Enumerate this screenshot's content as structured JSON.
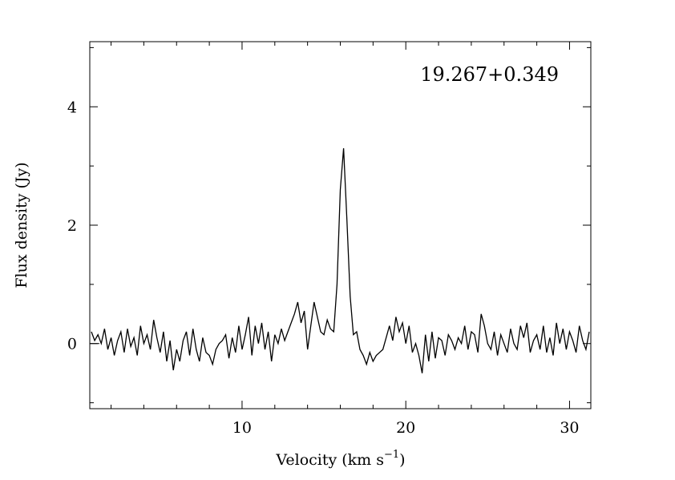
{
  "chart_data": {
    "type": "line",
    "title": "",
    "annotation": "19.267+0.349",
    "xlabel": "Velocity (km s",
    "xlabel_sup": "−1",
    "xlabel_end": ")",
    "ylabel": "Flux density (Jy)",
    "xlim": [
      0.7,
      31.3
    ],
    "ylim": [
      -1.1,
      5.1
    ],
    "x_ticks": [
      10,
      20,
      30
    ],
    "x_tick_labels": [
      "10",
      "20",
      "30"
    ],
    "x_minor_step": 2,
    "y_ticks": [
      0,
      2,
      4
    ],
    "y_tick_labels": [
      "0",
      "2",
      "4"
    ],
    "y_minor_step": 1,
    "grid": false,
    "line_color": "#000000",
    "series": [
      {
        "x_start": 0.8,
        "x_step": 0.2,
        "values": [
          0.2,
          0.05,
          0.15,
          0.0,
          0.25,
          -0.1,
          0.1,
          -0.2,
          0.05,
          0.2,
          -0.15,
          0.25,
          -0.05,
          0.1,
          -0.2,
          0.3,
          0.0,
          0.15,
          -0.1,
          0.4,
          0.1,
          -0.15,
          0.2,
          -0.3,
          0.05,
          -0.45,
          -0.1,
          -0.3,
          0.05,
          0.2,
          -0.2,
          0.25,
          -0.1,
          -0.3,
          0.1,
          -0.15,
          -0.2,
          -0.35,
          -0.1,
          0.0,
          0.05,
          0.15,
          -0.25,
          0.1,
          -0.15,
          0.3,
          -0.1,
          0.15,
          0.45,
          -0.2,
          0.3,
          0.0,
          0.35,
          -0.1,
          0.2,
          -0.3,
          0.15,
          0.0,
          0.25,
          0.05,
          0.2,
          0.35,
          0.5,
          0.7,
          0.35,
          0.55,
          -0.1,
          0.3,
          0.7,
          0.45,
          0.2,
          0.15,
          0.4,
          0.25,
          0.2,
          1.0,
          2.6,
          3.3,
          2.1,
          0.8,
          0.15,
          0.2,
          -0.1,
          -0.2,
          -0.35,
          -0.15,
          -0.3,
          -0.2,
          -0.15,
          -0.1,
          0.1,
          0.3,
          0.05,
          0.45,
          0.2,
          0.35,
          0.0,
          0.3,
          -0.15,
          0.0,
          -0.2,
          -0.5,
          0.15,
          -0.3,
          0.2,
          -0.25,
          0.1,
          0.05,
          -0.2,
          0.15,
          0.05,
          -0.1,
          0.1,
          0.0,
          0.3,
          -0.1,
          0.2,
          0.15,
          -0.15,
          0.5,
          0.3,
          0.0,
          -0.1,
          0.2,
          -0.2,
          0.15,
          0.0,
          -0.15,
          0.25,
          0.0,
          -0.1,
          0.3,
          0.1,
          0.35,
          -0.15,
          0.05,
          0.15,
          -0.1,
          0.3,
          -0.15,
          0.1,
          -0.2,
          0.35,
          0.0,
          0.25,
          -0.1,
          0.2,
          0.05,
          -0.15,
          0.3,
          0.05,
          -0.1,
          0.2
        ]
      }
    ]
  }
}
